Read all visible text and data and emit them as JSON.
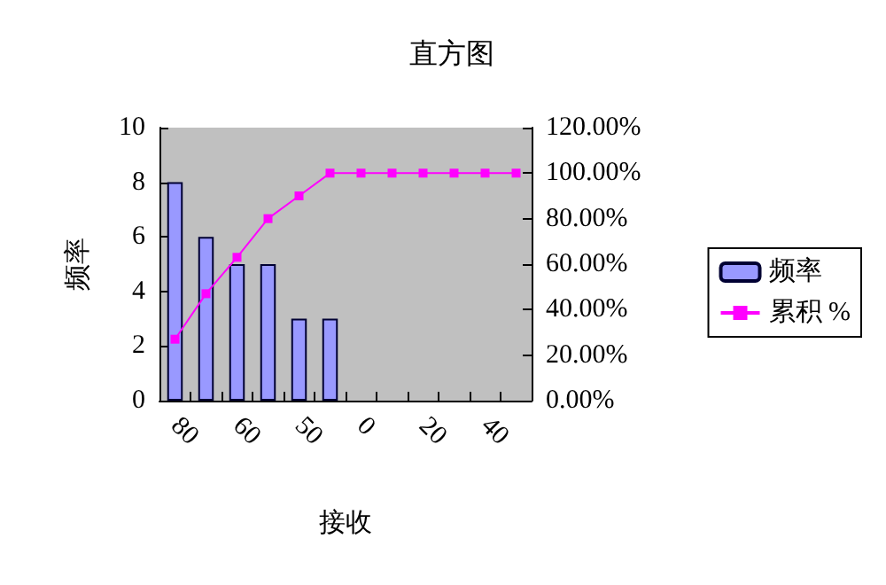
{
  "chart_data": {
    "type": "bar",
    "title": "直方图",
    "xlabel": "接收",
    "ylabel": "频率",
    "categories": [
      "80",
      null,
      "60",
      null,
      "50",
      null,
      "0",
      null,
      "20",
      null,
      "40",
      null
    ],
    "series": [
      {
        "name": "频率",
        "color": "#9999ff",
        "values": [
          8,
          6,
          5,
          5,
          3,
          3,
          0,
          0,
          0,
          0,
          0,
          0
        ]
      },
      {
        "name": "累积 %",
        "type": "line",
        "axis": "y2",
        "color": "#ff00ff",
        "values": [
          27,
          47,
          63,
          80,
          90,
          100,
          100,
          100,
          100,
          100,
          100,
          100
        ]
      }
    ],
    "ylim": [
      0,
      10
    ],
    "yticks": [
      0,
      2,
      4,
      6,
      8,
      10
    ],
    "y2lim": [
      0,
      120
    ],
    "y2ticks": [
      {
        "value": 0,
        "label": "0.00%"
      },
      {
        "value": 20,
        "label": "20.00%"
      },
      {
        "value": 40,
        "label": "40.00%"
      },
      {
        "value": 60,
        "label": "60.00%"
      },
      {
        "value": 80,
        "label": "80.00%"
      },
      {
        "value": 100,
        "label": "100.00%"
      },
      {
        "value": 120,
        "label": "120.00%"
      }
    ],
    "grid": false,
    "legend": "right",
    "marker": "square",
    "line_style": "solid"
  }
}
